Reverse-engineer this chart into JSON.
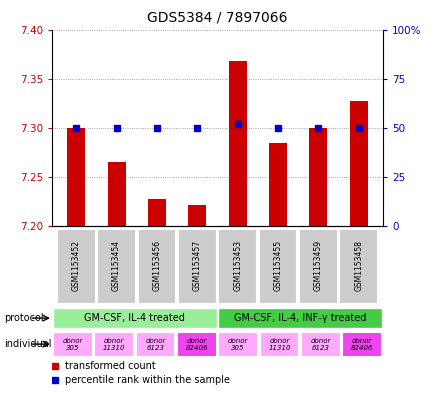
{
  "title": "GDS5384 / 7897066",
  "samples": [
    "GSM1153452",
    "GSM1153454",
    "GSM1153456",
    "GSM1153457",
    "GSM1153453",
    "GSM1153455",
    "GSM1153459",
    "GSM1153458"
  ],
  "transformed_counts": [
    7.3,
    7.265,
    7.228,
    7.222,
    7.368,
    7.285,
    7.3,
    7.328
  ],
  "percentile_ranks": [
    50,
    50,
    50,
    50,
    52,
    50,
    50,
    50
  ],
  "ylim": [
    7.2,
    7.4
  ],
  "yticks_left": [
    7.2,
    7.25,
    7.3,
    7.35,
    7.4
  ],
  "yticks_right_vals": [
    0,
    25,
    50,
    75,
    100
  ],
  "yticks_right_labels": [
    "0",
    "25",
    "50",
    "75",
    "100%"
  ],
  "bar_color": "#cc0000",
  "dot_color": "#0000cc",
  "bar_width": 0.45,
  "protocol_labels": [
    "GM-CSF, IL-4 treated",
    "GM-CSF, IL-4, INF-γ treated"
  ],
  "protocol_color_1": "#99ee99",
  "protocol_color_2": "#44cc44",
  "individual_labels": [
    "donor\n305",
    "donor\n11310",
    "donor\n6123",
    "donor\n82406",
    "donor\n305",
    "donor\n11310",
    "donor\n6123",
    "donor\n82406"
  ],
  "individual_colors": [
    "#ffaaff",
    "#ffaaff",
    "#ffaaff",
    "#ee44ee",
    "#ffaaff",
    "#ffaaff",
    "#ffaaff",
    "#ee44ee"
  ],
  "sample_box_color": "#cccccc",
  "grid_color": "#888888",
  "left_tick_color": "#cc0000",
  "right_tick_color": "#0000cc",
  "legend_bar_label": "transformed count",
  "legend_dot_label": "percentile rank within the sample",
  "protocol_row_label": "protocol",
  "individual_row_label": "individual"
}
